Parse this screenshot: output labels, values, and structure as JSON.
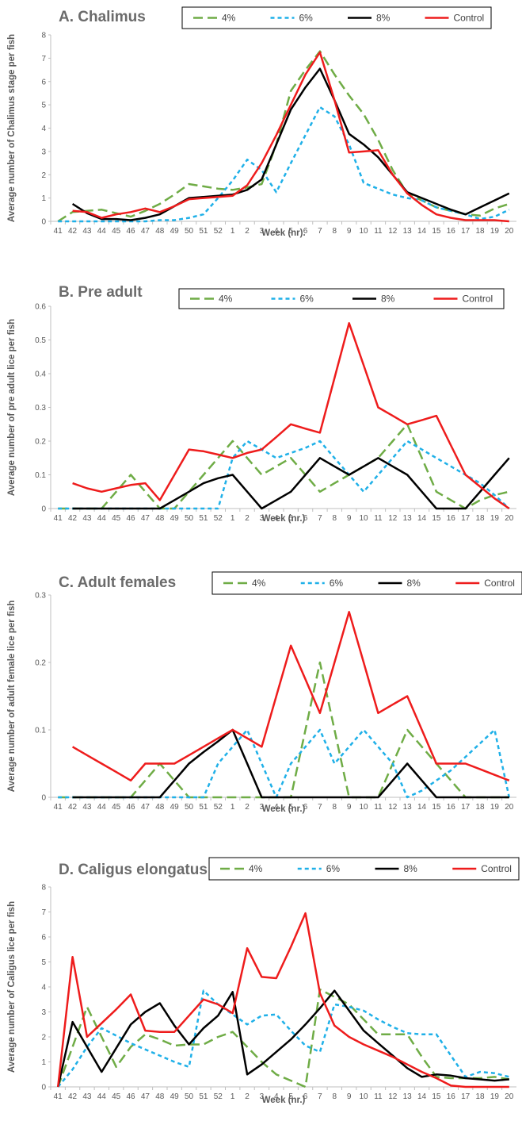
{
  "x_categories": [
    "41",
    "42",
    "43",
    "44",
    "45",
    "46",
    "47",
    "48",
    "49",
    "50",
    "51",
    "52",
    "1",
    "2",
    "3",
    "4",
    "5",
    "6",
    "7",
    "8",
    "9",
    "10",
    "11",
    "12",
    "13",
    "14",
    "15",
    "16",
    "17",
    "18",
    "19",
    "20"
  ],
  "series_styles": [
    {
      "color": "#6fac46",
      "dash": "12,6"
    },
    {
      "color": "#1fb0e8",
      "dash": "5,4"
    },
    {
      "color": "#000000",
      "dash": ""
    },
    {
      "color": "#ee1c1c",
      "dash": ""
    }
  ],
  "chart_data": [
    {
      "type": "line",
      "title": "A. Chalimus",
      "xlabel": "Week (nr).",
      "ylabel": "Average number of Chalimus stage per fish",
      "ylim": [
        0,
        8
      ],
      "yticks": [
        "0",
        "1",
        "2",
        "3",
        "4",
        "5",
        "6",
        "7",
        "8"
      ],
      "grid": false,
      "legend": "top",
      "series": [
        {
          "name": "4%",
          "values": [
            0,
            0.4,
            0.45,
            0.5,
            0.35,
            0.2,
            0.45,
            0.75,
            1.15,
            1.6,
            1.5,
            1.4,
            1.35,
            1.45,
            1.6,
            3.3,
            5.6,
            6.5,
            7.3,
            6.3,
            5.4,
            4.6,
            3.5,
            2.2,
            1.2,
            0.9,
            0.6,
            0.45,
            0.3,
            0.25,
            0.55,
            0.75
          ]
        },
        {
          "name": "6%",
          "values": [
            0,
            0,
            0,
            0,
            0,
            0,
            0,
            0.05,
            0.05,
            0.15,
            0.3,
            1.0,
            1.75,
            2.65,
            2.2,
            1.25,
            2.5,
            3.7,
            4.9,
            4.5,
            3.3,
            1.65,
            1.4,
            1.15,
            1.0,
            0.9,
            0.6,
            0.45,
            0.3,
            0.1,
            0.2,
            0.5
          ]
        },
        {
          "name": "8%",
          "values": [
            null,
            0.75,
            0.35,
            0.1,
            0.1,
            0.05,
            0.15,
            0.3,
            0.65,
            1.0,
            1.05,
            1.1,
            1.15,
            1.35,
            1.8,
            3.3,
            4.8,
            5.75,
            6.55,
            5.2,
            3.75,
            3.3,
            2.75,
            2.0,
            1.25,
            1.0,
            0.75,
            0.5,
            0.3,
            0.6,
            0.9,
            1.2
          ]
        },
        {
          "name": "Control",
          "values": [
            null,
            0.45,
            0.4,
            0.15,
            0.3,
            0.4,
            0.55,
            0.4,
            0.65,
            0.95,
            1.0,
            1.05,
            1.1,
            1.55,
            2.5,
            3.7,
            5.0,
            6.3,
            7.25,
            5.2,
            2.95,
            3.0,
            3.05,
            2.0,
            1.2,
            0.7,
            0.3,
            0.15,
            0.05,
            0.05,
            0.05,
            0
          ]
        }
      ]
    },
    {
      "type": "line",
      "title": "B. Pre adult",
      "xlabel": "Week (nr.)",
      "ylabel": "Average number of pre adult lice per fish",
      "ylim": [
        0,
        0.6
      ],
      "yticks": [
        "0",
        "0.1",
        "0.2",
        "0.3",
        "0.4",
        "0.5",
        "0.6"
      ],
      "grid": false,
      "legend": "top",
      "series": [
        {
          "name": "4%",
          "values": [
            0,
            0,
            0,
            0,
            0.05,
            0.1,
            0.05,
            0,
            0,
            0.05,
            0.1,
            0.15,
            0.2,
            0.15,
            0.1,
            0.125,
            0.15,
            0.1,
            0.05,
            0.075,
            0.1,
            0.125,
            0.15,
            0.2,
            0.25,
            0.15,
            0.05,
            0.025,
            0,
            0.025,
            0.04,
            0.05
          ]
        },
        {
          "name": "6%",
          "values": [
            0,
            0,
            0,
            0,
            0,
            0,
            0,
            0,
            0,
            0,
            0,
            0,
            0.15,
            0.2,
            0.175,
            0.15,
            0.165,
            0.18,
            0.2,
            0.15,
            0.1,
            0.05,
            0.1,
            0.15,
            0.2,
            0.175,
            0.15,
            0.125,
            0.1,
            0.075,
            0.04,
            0
          ]
        },
        {
          "name": "8%",
          "values": [
            null,
            0,
            0,
            0,
            0,
            0,
            0,
            0,
            0.025,
            0.05,
            0.075,
            0.09,
            0.1,
            0.05,
            0,
            0.025,
            0.05,
            0.1,
            0.15,
            0.125,
            0.1,
            0.125,
            0.15,
            0.125,
            0.1,
            0.05,
            0,
            0,
            0,
            0.05,
            0.1,
            0.15
          ]
        },
        {
          "name": "Control",
          "values": [
            null,
            0.075,
            0.06,
            0.05,
            0.06,
            0.07,
            0.075,
            0.025,
            0.1,
            0.175,
            0.17,
            0.16,
            0.15,
            0.165,
            0.175,
            0.212,
            0.25,
            0.237,
            0.225,
            0.387,
            0.55,
            0.425,
            0.3,
            0.275,
            0.25,
            0.262,
            0.275,
            0.187,
            0.1,
            0.065,
            0.03,
            0
          ]
        }
      ]
    },
    {
      "type": "line",
      "title": "C. Adult females",
      "xlabel": "Week (nr.)",
      "ylabel": "Average number of adult female lice per fish",
      "ylim": [
        0,
        0.3
      ],
      "yticks": [
        "0",
        "0.1",
        "0.2",
        "0.3"
      ],
      "grid": false,
      "legend": "top",
      "series": [
        {
          "name": "4%",
          "values": [
            0,
            0,
            0,
            0,
            0,
            0,
            0.025,
            0.05,
            0.025,
            0,
            0,
            0,
            0,
            0,
            0,
            0,
            0,
            0.1,
            0.2,
            0.1,
            0,
            0,
            0,
            0.05,
            0.1,
            0.075,
            0.05,
            0.025,
            0,
            0,
            0,
            0
          ]
        },
        {
          "name": "6%",
          "values": [
            0,
            0,
            0,
            0,
            0,
            0,
            0,
            0,
            0,
            0,
            0,
            0.05,
            0.075,
            0.1,
            0.05,
            0,
            0.05,
            0.075,
            0.1,
            0.05,
            0.075,
            0.1,
            0.075,
            0.05,
            0,
            0.01,
            0.025,
            0.04,
            0.06,
            0.08,
            0.1,
            0
          ]
        },
        {
          "name": "8%",
          "values": [
            null,
            0,
            0,
            0,
            0,
            0,
            0,
            0,
            0.025,
            0.05,
            0.067,
            0.083,
            0.1,
            0.05,
            0,
            0,
            0,
            0,
            0,
            0,
            0,
            0,
            0,
            0.025,
            0.05,
            0.025,
            0,
            0,
            0,
            0,
            0,
            0
          ]
        },
        {
          "name": "Control",
          "values": [
            null,
            0.075,
            0.0625,
            0.05,
            0.0375,
            0.025,
            0.05,
            0.05,
            0.05,
            0.0625,
            0.075,
            0.0875,
            0.1,
            0.0875,
            0.075,
            0.15,
            0.225,
            0.175,
            0.125,
            0.2,
            0.275,
            0.2,
            0.125,
            0.1375,
            0.15,
            0.1,
            0.05,
            0.05,
            0.05,
            0.0417,
            0.0333,
            0.025
          ]
        }
      ]
    },
    {
      "type": "line",
      "title": "D. Caligus elongatus",
      "xlabel": "Week (nr.)",
      "ylabel": "Average number of Caligus lice per fish",
      "ylim": [
        0,
        8
      ],
      "yticks": [
        "0",
        "1",
        "2",
        "3",
        "4",
        "5",
        "6",
        "7",
        "8"
      ],
      "grid": false,
      "legend": "top",
      "series": [
        {
          "name": "4%",
          "values": [
            0,
            1.6,
            3.2,
            2.0,
            0.8,
            1.6,
            2.1,
            1.9,
            1.65,
            1.7,
            1.7,
            2.0,
            2.2,
            1.6,
            1.0,
            0.5,
            0.25,
            0,
            3.9,
            3.6,
            3.3,
            2.7,
            2.1,
            2.1,
            2.1,
            1.2,
            0.4,
            0.35,
            0.35,
            0.35,
            0.4,
            0.3
          ]
        },
        {
          "name": "6%",
          "values": [
            0,
            0.7,
            1.6,
            2.35,
            2.05,
            1.75,
            1.5,
            1.25,
            1.0,
            0.8,
            3.85,
            3.3,
            2.9,
            2.5,
            2.85,
            2.9,
            2.25,
            1.65,
            1.4,
            3.3,
            3.2,
            3.05,
            2.7,
            2.4,
            2.15,
            2.1,
            2.1,
            1.25,
            0.4,
            0.6,
            0.55,
            0.4
          ]
        },
        {
          "name": "8%",
          "values": [
            0,
            2.6,
            1.6,
            0.6,
            1.55,
            2.5,
            3.0,
            3.35,
            2.45,
            1.7,
            2.35,
            2.85,
            3.8,
            0.5,
            0.9,
            1.4,
            1.9,
            2.5,
            3.15,
            3.85,
            3.05,
            2.25,
            1.75,
            1.25,
            0.75,
            0.4,
            0.5,
            0.45,
            0.35,
            0.3,
            0.25,
            0.3
          ]
        },
        {
          "name": "Control",
          "values": [
            0,
            5.2,
            2.0,
            2.55,
            3.1,
            3.7,
            2.25,
            2.2,
            2.2,
            2.85,
            3.5,
            3.3,
            2.95,
            5.55,
            4.4,
            4.35,
            5.6,
            6.95,
            3.75,
            2.45,
            2.0,
            1.7,
            1.45,
            1.2,
            0.9,
            0.6,
            0.35,
            0.05,
            0.0,
            0.0,
            0.0,
            0.0
          ]
        }
      ]
    }
  ]
}
